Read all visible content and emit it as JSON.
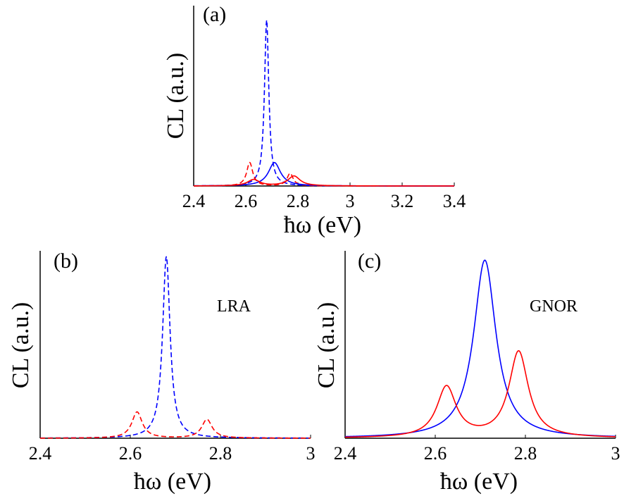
{
  "chart_data": [
    {
      "panel": "(a)",
      "type": "line",
      "xlabel": "ħω (eV)",
      "ylabel": "CL (a.u.)",
      "xlim": [
        2.4,
        3.4
      ],
      "ylim": [
        0,
        1.0
      ],
      "xticks": [
        "2.4",
        "2.6",
        "2.8",
        "3",
        "3.2",
        "3.4"
      ],
      "xtick_values": [
        2.4,
        2.6,
        2.8,
        3.0,
        3.2,
        3.4
      ],
      "annotation": "",
      "series": [
        {
          "style": "dashed",
          "color": "#0000ff",
          "peaks": [
            {
              "x0": 2.68,
              "gamma": 0.01,
              "amp": 0.92
            }
          ]
        },
        {
          "style": "dashed",
          "color": "#ff0000",
          "peaks": [
            {
              "x0": 2.615,
              "gamma": 0.014,
              "amp": 0.13
            },
            {
              "x0": 2.77,
              "gamma": 0.014,
              "amp": 0.07
            }
          ]
        },
        {
          "style": "solid",
          "color": "#0000ff",
          "peaks": [
            {
              "x0": 2.71,
              "gamma": 0.028,
              "amp": 0.13
            }
          ]
        },
        {
          "style": "solid",
          "color": "#ff0000",
          "peaks": [
            {
              "x0": 2.63,
              "gamma": 0.028,
              "amp": 0.035
            },
            {
              "x0": 2.785,
              "gamma": 0.028,
              "amp": 0.055
            }
          ]
        }
      ]
    },
    {
      "panel": "(b)",
      "type": "line",
      "xlabel": "ħω (eV)",
      "ylabel": "CL (a.u.)",
      "xlim": [
        2.4,
        3.0
      ],
      "ylim": [
        0,
        1.0
      ],
      "xticks": [
        "2.4",
        "2.6",
        "2.8",
        "3"
      ],
      "xtick_values": [
        2.4,
        2.6,
        2.8,
        3.0
      ],
      "annotation": "LRA",
      "series": [
        {
          "style": "dashed",
          "color": "#0000ff",
          "peaks": [
            {
              "x0": 2.68,
              "gamma": 0.01,
              "amp": 0.97
            }
          ]
        },
        {
          "style": "dashed",
          "color": "#ff0000",
          "peaks": [
            {
              "x0": 2.615,
              "gamma": 0.014,
              "amp": 0.14
            },
            {
              "x0": 2.77,
              "gamma": 0.014,
              "amp": 0.1
            }
          ]
        }
      ]
    },
    {
      "panel": "(c)",
      "type": "line",
      "xlabel": "ħω (eV)",
      "ylabel": "CL (a.u.)",
      "xlim": [
        2.4,
        3.0
      ],
      "ylim": [
        0,
        1.0
      ],
      "xticks": [
        "2.4",
        "2.6",
        "2.8",
        "3"
      ],
      "xtick_values": [
        2.4,
        2.6,
        2.8,
        3.0
      ],
      "annotation": "GNOR",
      "series": [
        {
          "style": "solid",
          "color": "#0000ff",
          "peaks": [
            {
              "x0": 2.71,
              "gamma": 0.03,
              "amp": 0.95
            }
          ]
        },
        {
          "style": "solid",
          "color": "#ff0000",
          "peaks": [
            {
              "x0": 2.625,
              "gamma": 0.026,
              "amp": 0.27
            },
            {
              "x0": 2.785,
              "gamma": 0.026,
              "amp": 0.46
            }
          ]
        }
      ]
    }
  ]
}
